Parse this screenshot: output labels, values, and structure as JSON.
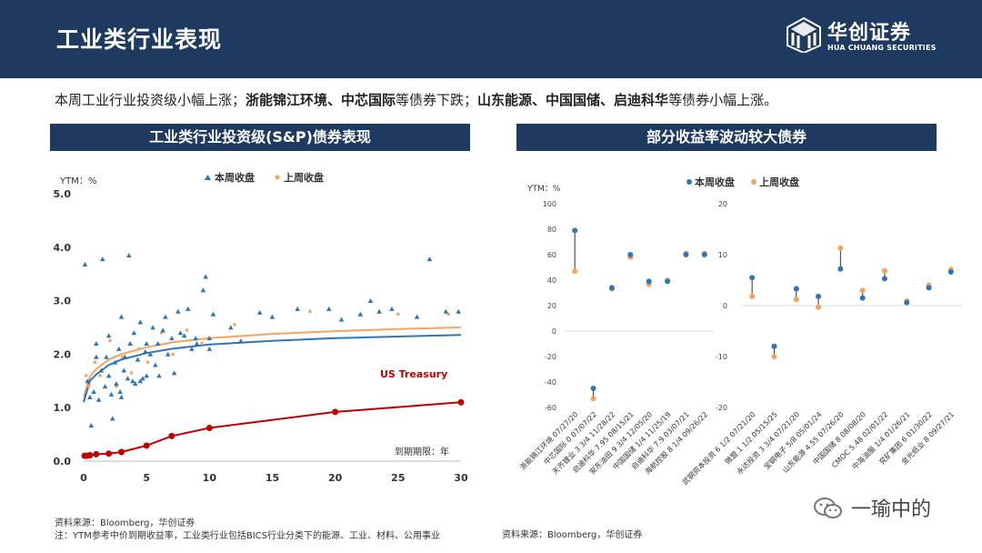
{
  "header": {
    "title": "工业类行业表现",
    "logo_cn": "华创证券",
    "logo_en": "HUA CHUANG SECURITIES"
  },
  "summary": {
    "p1": "本周工业行业投资级小幅上涨；",
    "b1": "浙能锦江环境、中芯国际",
    "p2": "等债券下跌；",
    "b2": "山东能源、中国国储、启迪科华",
    "p3": "等债券小幅上涨。"
  },
  "left_panel": {
    "title": "工业类行业投资级(S&P)债券表现"
  },
  "right_panel": {
    "title": "部分收益率波动较大债券"
  },
  "colors": {
    "this_week": "#2e75b6",
    "last_week": "#f4a460",
    "treasury": "#c00000",
    "header": "#1f3a60"
  },
  "chart_data": [
    {
      "type": "scatter",
      "title": "",
      "ylabel": "YTM：%",
      "xlabel": "到期期限：年",
      "xlim": [
        0,
        30
      ],
      "ylim": [
        0,
        5
      ],
      "xticks": [
        "0",
        "5",
        "10",
        "15",
        "20",
        "25",
        "30"
      ],
      "yticks": [
        "0.0",
        "1.0",
        "2.0",
        "3.0",
        "4.0",
        "5.0"
      ],
      "grid": false,
      "legend": [
        "本周收盘",
        "上周收盘"
      ],
      "annotation": "US Treasury",
      "series": [
        {
          "name": "本周收盘",
          "marker": "triangle",
          "points": [
            [
              0.1,
              3.68
            ],
            [
              0.3,
              1.5
            ],
            [
              0.5,
              1.2
            ],
            [
              0.6,
              0.67
            ],
            [
              0.8,
              1.3
            ],
            [
              1.0,
              1.95
            ],
            [
              1.0,
              2.2
            ],
            [
              1.2,
              1.15
            ],
            [
              1.4,
              1.7
            ],
            [
              1.5,
              3.78
            ],
            [
              1.7,
              1.4
            ],
            [
              1.8,
              1.95
            ],
            [
              2.0,
              1.6
            ],
            [
              2.0,
              2.35
            ],
            [
              2.2,
              1.25
            ],
            [
              2.3,
              0.8
            ],
            [
              2.5,
              1.85
            ],
            [
              2.6,
              1.45
            ],
            [
              2.8,
              2.1
            ],
            [
              2.9,
              1.3
            ],
            [
              3.0,
              2.7
            ],
            [
              3.0,
              1.2
            ],
            [
              3.2,
              1.7
            ],
            [
              3.3,
              1.95
            ],
            [
              3.5,
              1.55
            ],
            [
              3.6,
              3.85
            ],
            [
              3.7,
              2.2
            ],
            [
              3.9,
              1.5
            ],
            [
              4.0,
              2.4
            ],
            [
              4.1,
              1.45
            ],
            [
              4.3,
              1.9
            ],
            [
              4.5,
              1.5
            ],
            [
              4.5,
              2.6
            ],
            [
              4.7,
              1.55
            ],
            [
              4.9,
              2.05
            ],
            [
              5.0,
              1.6
            ],
            [
              5.0,
              2.2
            ],
            [
              5.3,
              2.0
            ],
            [
              5.5,
              2.5
            ],
            [
              5.7,
              1.8
            ],
            [
              5.9,
              2.2
            ],
            [
              6.0,
              1.6
            ],
            [
              6.3,
              2.45
            ],
            [
              6.5,
              2.7
            ],
            [
              6.7,
              2.0
            ],
            [
              7.0,
              2.3
            ],
            [
              7.2,
              1.65
            ],
            [
              7.5,
              2.8
            ],
            [
              7.7,
              2.4
            ],
            [
              8.0,
              2.35
            ],
            [
              8.3,
              2.85
            ],
            [
              8.6,
              2.1
            ],
            [
              8.9,
              2.3
            ],
            [
              9.0,
              2.2
            ],
            [
              9.5,
              3.2
            ],
            [
              9.7,
              3.45
            ],
            [
              10.0,
              2.1
            ],
            [
              10.0,
              2.3
            ],
            [
              10.3,
              2.75
            ],
            [
              11.7,
              2.5
            ],
            [
              12.5,
              2.25
            ],
            [
              14.0,
              2.78
            ],
            [
              15.0,
              2.7
            ],
            [
              17.0,
              2.85
            ],
            [
              19.5,
              2.85
            ],
            [
              20.5,
              2.65
            ],
            [
              22.0,
              2.75
            ],
            [
              22.8,
              3.0
            ],
            [
              23.5,
              2.8
            ],
            [
              24.5,
              2.85
            ],
            [
              26.5,
              2.7
            ],
            [
              27.5,
              3.78
            ],
            [
              28.8,
              2.8
            ],
            [
              29.8,
              2.8
            ]
          ]
        },
        {
          "name": "上周收盘",
          "marker": "dot",
          "points": [
            [
              0.2,
              1.6
            ],
            [
              0.4,
              1.4
            ],
            [
              0.9,
              1.85
            ],
            [
              1.3,
              1.6
            ],
            [
              2.1,
              2.25
            ],
            [
              2.6,
              1.4
            ],
            [
              3.1,
              1.95
            ],
            [
              3.8,
              1.65
            ],
            [
              4.4,
              2.1
            ],
            [
              5.1,
              1.85
            ],
            [
              6.2,
              2.4
            ],
            [
              7.1,
              2.0
            ],
            [
              8.2,
              2.45
            ],
            [
              9.4,
              2.2
            ],
            [
              12.0,
              2.55
            ],
            [
              18.0,
              2.8
            ],
            [
              25.0,
              2.75
            ],
            [
              29.0,
              2.75
            ]
          ]
        },
        {
          "name": "本周收盘 fit",
          "marker": "line",
          "points": [
            [
              0.0,
              1.1
            ],
            [
              0.5,
              1.5
            ],
            [
              1,
              1.62
            ],
            [
              2,
              1.8
            ],
            [
              3,
              1.9
            ],
            [
              5,
              2.02
            ],
            [
              7,
              2.1
            ],
            [
              10,
              2.18
            ],
            [
              15,
              2.25
            ],
            [
              20,
              2.3
            ],
            [
              25,
              2.33
            ],
            [
              30,
              2.36
            ]
          ]
        },
        {
          "name": "上周收盘 fit",
          "marker": "line",
          "points": [
            [
              0.0,
              1.2
            ],
            [
              0.5,
              1.58
            ],
            [
              1,
              1.72
            ],
            [
              2,
              1.9
            ],
            [
              3,
              2.0
            ],
            [
              5,
              2.13
            ],
            [
              7,
              2.22
            ],
            [
              10,
              2.3
            ],
            [
              15,
              2.38
            ],
            [
              20,
              2.43
            ],
            [
              25,
              2.47
            ],
            [
              30,
              2.5
            ]
          ]
        },
        {
          "name": "US Treasury",
          "marker": "line-dot",
          "points": [
            [
              0.08,
              0.1
            ],
            [
              0.25,
              0.1
            ],
            [
              0.5,
              0.11
            ],
            [
              1,
              0.13
            ],
            [
              2,
              0.14
            ],
            [
              3,
              0.17
            ],
            [
              5,
              0.29
            ],
            [
              7,
              0.47
            ],
            [
              10,
              0.62
            ],
            [
              20,
              0.92
            ],
            [
              30,
              1.1
            ]
          ]
        }
      ]
    },
    {
      "type": "dumbbell",
      "title": "",
      "ylabel": "YTM：%",
      "legend": [
        "本周收盘",
        "上周收盘"
      ],
      "panels": [
        {
          "ylim": [
            -60,
            100
          ],
          "yticks": [
            "100",
            "80",
            "60",
            "40",
            "20",
            "0",
            "-20",
            "-40",
            "-60"
          ],
          "categories": [
            "浙能锦江环境 07/27/20",
            "中芯国际 0 07/07/22",
            "天齐锂业 3 3/4 11/28/22",
            "启迪科华 7.95 08/15/21",
            "安东油田 9 3/4 12/05/20",
            "中国国储 1/4 11/25/19",
            "启迪科华 7.9 03/07/21",
            "海航控股 8 1/4 09/26/22"
          ],
          "this_week": [
            79,
            -45,
            34,
            60,
            39,
            39,
            60,
            60
          ],
          "last_week": [
            47,
            -53,
            33,
            58,
            37,
            40,
            61,
            61
          ]
        },
        {
          "ylim": [
            -20,
            20
          ],
          "yticks": [
            "20",
            "10",
            "0",
            "-10",
            "-20"
          ],
          "categories": [
            "武钢资本投资 6 1/2 07/21/20",
            "微盟 1 1/2 05/15/25",
            "永达投资 3 3/4 07/21/20",
            "宝钢电子 5/8 05/01/24",
            "山东能源 4.55 07/26/20",
            "中国国储 8 08/08/20",
            "CMOC 5.48 02/01/22",
            "中海油服 1/4 01/26/21",
            "兖矿集团 6 01/30/22",
            "金光纸业 8 09/27/21"
          ],
          "this_week": [
            5.5,
            -8,
            3.3,
            1.8,
            7.2,
            1.5,
            5.3,
            0.6,
            3.5,
            6.6
          ],
          "last_week": [
            1.8,
            -10,
            1.2,
            -0.3,
            11.3,
            3.0,
            6.8,
            0.9,
            4.0,
            7.1
          ]
        }
      ]
    }
  ],
  "footer": {
    "left_line1": "资料来源：Bloomberg，华创证券",
    "left_line2": "注：YTM参考中价到期收益率，工业类行业包括BICS行业分类下的能源、工业、材料、公用事业",
    "right_line1": "资料来源：Bloomberg，华创证券",
    "watermark": "一瑜中的"
  }
}
